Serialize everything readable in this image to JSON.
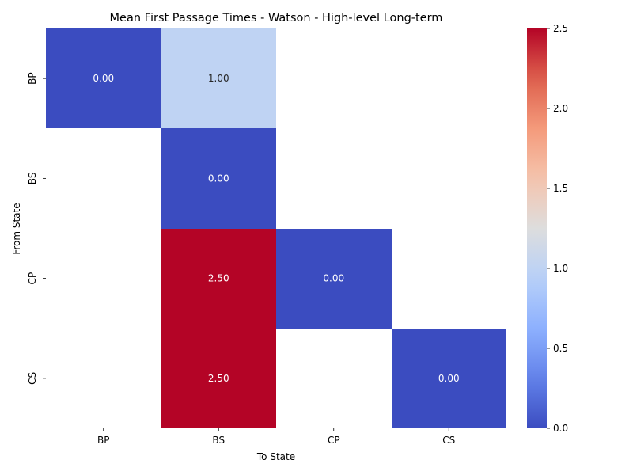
{
  "chart_data": {
    "type": "heatmap",
    "title": "Mean First Passage Times - Watson - High-level Long-term",
    "xlabel": "To State",
    "ylabel": "From State",
    "x_categories": [
      "BP",
      "BS",
      "CP",
      "CS"
    ],
    "y_categories": [
      "BP",
      "BS",
      "CP",
      "CS"
    ],
    "values": [
      [
        0.0,
        1.0,
        null,
        null
      ],
      [
        null,
        0.0,
        null,
        null
      ],
      [
        null,
        2.5,
        0.0,
        null
      ],
      [
        null,
        2.5,
        null,
        0.0
      ]
    ],
    "annotations": [
      [
        "0.00",
        "1.00",
        "",
        ""
      ],
      [
        "",
        "0.00",
        "",
        ""
      ],
      [
        "",
        "2.50",
        "0.00",
        ""
      ],
      [
        "",
        "2.50",
        "",
        "0.00"
      ]
    ],
    "colormap": "coolwarm",
    "vmin": 0.0,
    "vmax": 2.5,
    "colorbar_ticks": [
      "0.0",
      "0.5",
      "1.0",
      "1.5",
      "2.0",
      "2.5"
    ],
    "colorbar_tick_values": [
      0.0,
      0.5,
      1.0,
      1.5,
      2.0,
      2.5
    ],
    "grid": false
  }
}
